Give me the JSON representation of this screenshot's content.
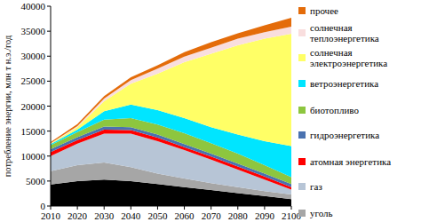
{
  "chart_data": {
    "type": "area",
    "stacked": true,
    "y_label": "потребление энергии, млн т н.э./год",
    "x": [
      2010,
      2020,
      2030,
      2040,
      2050,
      2060,
      2070,
      2080,
      2090,
      2100
    ],
    "xlim": [
      2010,
      2100
    ],
    "xticks": [
      2010,
      2020,
      2030,
      2040,
      2050,
      2060,
      2070,
      2080,
      2090,
      2100
    ],
    "ylim": [
      0,
      40000
    ],
    "yticks": [
      0,
      5000,
      10000,
      15000,
      20000,
      25000,
      30000,
      35000,
      40000
    ],
    "grid": false,
    "legend": "right",
    "series": [
      {
        "color": "#000000",
        "values": [
          4300,
          5000,
          5300,
          5000,
          4400,
          3800,
          3200,
          2600,
          2000,
          1400
        ]
      },
      {
        "name": "уголь",
        "color": "#a6a6a6",
        "values": [
          2700,
          3200,
          3400,
          2800,
          2100,
          1700,
          1400,
          1200,
          1000,
          900
        ]
      },
      {
        "name": "газ",
        "color": "#b7c5d6",
        "values": [
          3000,
          4300,
          5800,
          6700,
          6500,
          5700,
          4700,
          3500,
          2300,
          1000
        ]
      },
      {
        "name": "атомная энергетика",
        "color": "#ff0000",
        "values": [
          800,
          700,
          800,
          700,
          700,
          600,
          600,
          600,
          600,
          500
        ]
      },
      {
        "name": "гидроэнергетика",
        "color": "#4a72b0",
        "values": [
          600,
          600,
          600,
          600,
          600,
          600,
          600,
          600,
          600,
          600
        ]
      },
      {
        "name": "биотопливо",
        "color": "#8dc63f",
        "values": [
          800,
          1000,
          1400,
          1800,
          2000,
          2200,
          2100,
          2000,
          1700,
          1400
        ]
      },
      {
        "name": "ветроэнергетика",
        "color": "#00e5ff",
        "values": [
          200,
          500,
          1700,
          2700,
          2900,
          3000,
          3200,
          3800,
          4800,
          6200
        ]
      },
      {
        "name": "солнечная электроэнергетика",
        "color": "#ffff66",
        "values": [
          100,
          500,
          2000,
          4200,
          7300,
          11200,
          14700,
          17900,
          20500,
          22500
        ]
      },
      {
        "name": "солнечная теплоэнергетика",
        "color": "#f9dede",
        "values": [
          100,
          200,
          500,
          700,
          1000,
          1100,
          1200,
          1300,
          1300,
          1400
        ]
      },
      {
        "name": "прочее",
        "color": "#e46c0a",
        "values": [
          200,
          400,
          500,
          600,
          700,
          900,
          1100,
          1100,
          1400,
          1800
        ]
      }
    ]
  }
}
